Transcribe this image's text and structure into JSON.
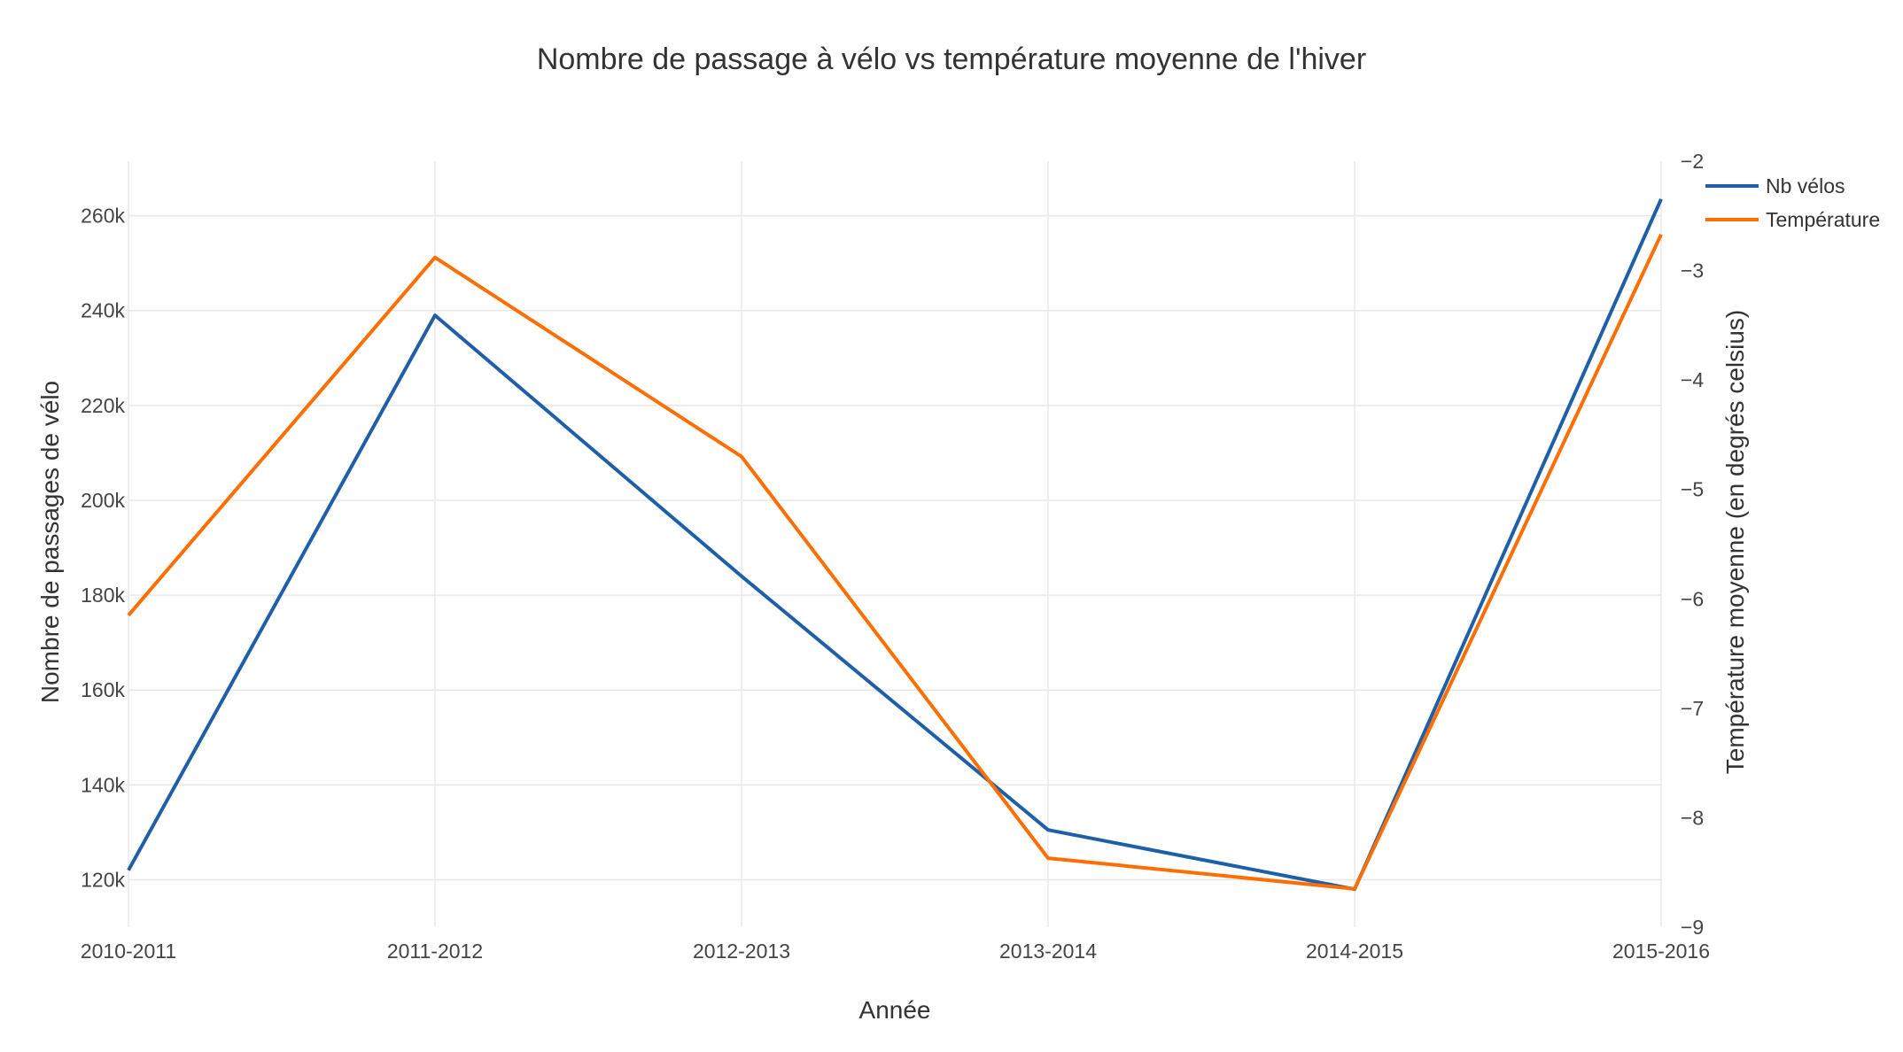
{
  "chart_data": {
    "type": "line",
    "title": "Nombre de passage à vélo vs température moyenne de l'hiver",
    "xlabel": "Année",
    "ylabel": "Nombre de passages de vélo",
    "y2label": "Température moyenne (en degrés celsius)",
    "categories": [
      "2010-2011",
      "2011-2012",
      "2012-2013",
      "2013-2014",
      "2014-2015",
      "2015-2016"
    ],
    "ylim": [
      110000,
      271500
    ],
    "y2lim": [
      -9,
      -2
    ],
    "yticks": [
      {
        "value": 120000,
        "label": "120k"
      },
      {
        "value": 140000,
        "label": "140k"
      },
      {
        "value": 160000,
        "label": "160k"
      },
      {
        "value": 180000,
        "label": "180k"
      },
      {
        "value": 200000,
        "label": "200k"
      },
      {
        "value": 220000,
        "label": "220k"
      },
      {
        "value": 240000,
        "label": "240k"
      },
      {
        "value": 260000,
        "label": "260k"
      }
    ],
    "y2ticks": [
      {
        "value": -2,
        "label": "−2"
      },
      {
        "value": -3,
        "label": "−3"
      },
      {
        "value": -4,
        "label": "−4"
      },
      {
        "value": -5,
        "label": "−5"
      },
      {
        "value": -6,
        "label": "−6"
      },
      {
        "value": -7,
        "label": "−7"
      },
      {
        "value": -8,
        "label": "−8"
      },
      {
        "value": -9,
        "label": "−9"
      }
    ],
    "grid": true,
    "legend_position": "top-right",
    "series": [
      {
        "name": "Nb vélos",
        "axis": "y",
        "color": "#1f5fa8",
        "values": [
          122000,
          239000,
          184000,
          130500,
          118000,
          263500
        ]
      },
      {
        "name": "Température",
        "axis": "y2",
        "color": "#ff6e00",
        "values": [
          -6.15,
          -2.88,
          -4.7,
          -8.37,
          -8.65,
          -2.67
        ]
      }
    ]
  }
}
